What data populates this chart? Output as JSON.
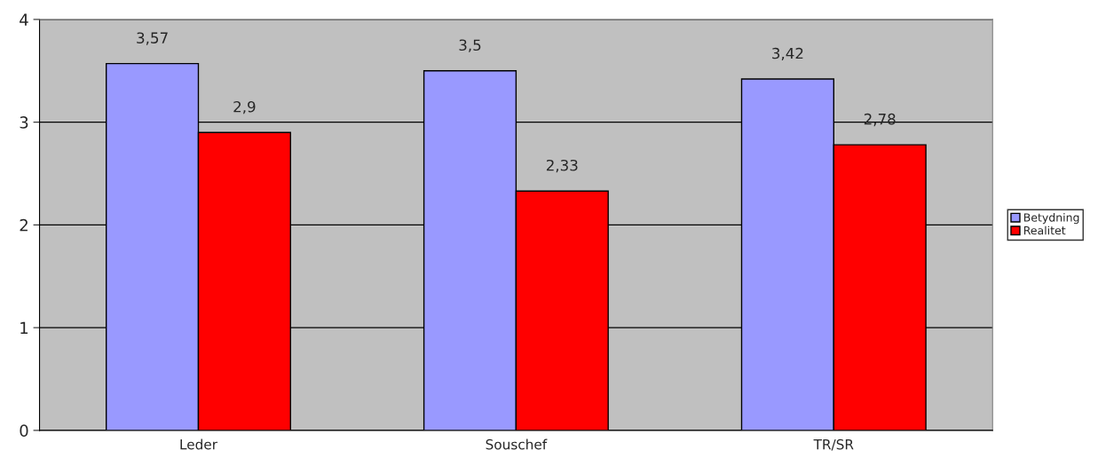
{
  "chart_data": {
    "type": "bar",
    "categories": [
      "Leder",
      "Souschef",
      "TR/SR"
    ],
    "series": [
      {
        "name": "Betydning",
        "color": "#9999ff",
        "values": [
          3.57,
          3.5,
          3.42
        ],
        "value_labels": [
          "3,57",
          "3,5",
          "3,42"
        ]
      },
      {
        "name": "Realitet",
        "color": "#ff0000",
        "values": [
          2.9,
          2.33,
          2.78
        ],
        "value_labels": [
          "2,9",
          "2,33",
          "2,78"
        ]
      }
    ],
    "ylim": [
      0,
      4
    ],
    "yticks": [
      0,
      1,
      2,
      3,
      4
    ],
    "grid": "y",
    "legend": "right"
  }
}
